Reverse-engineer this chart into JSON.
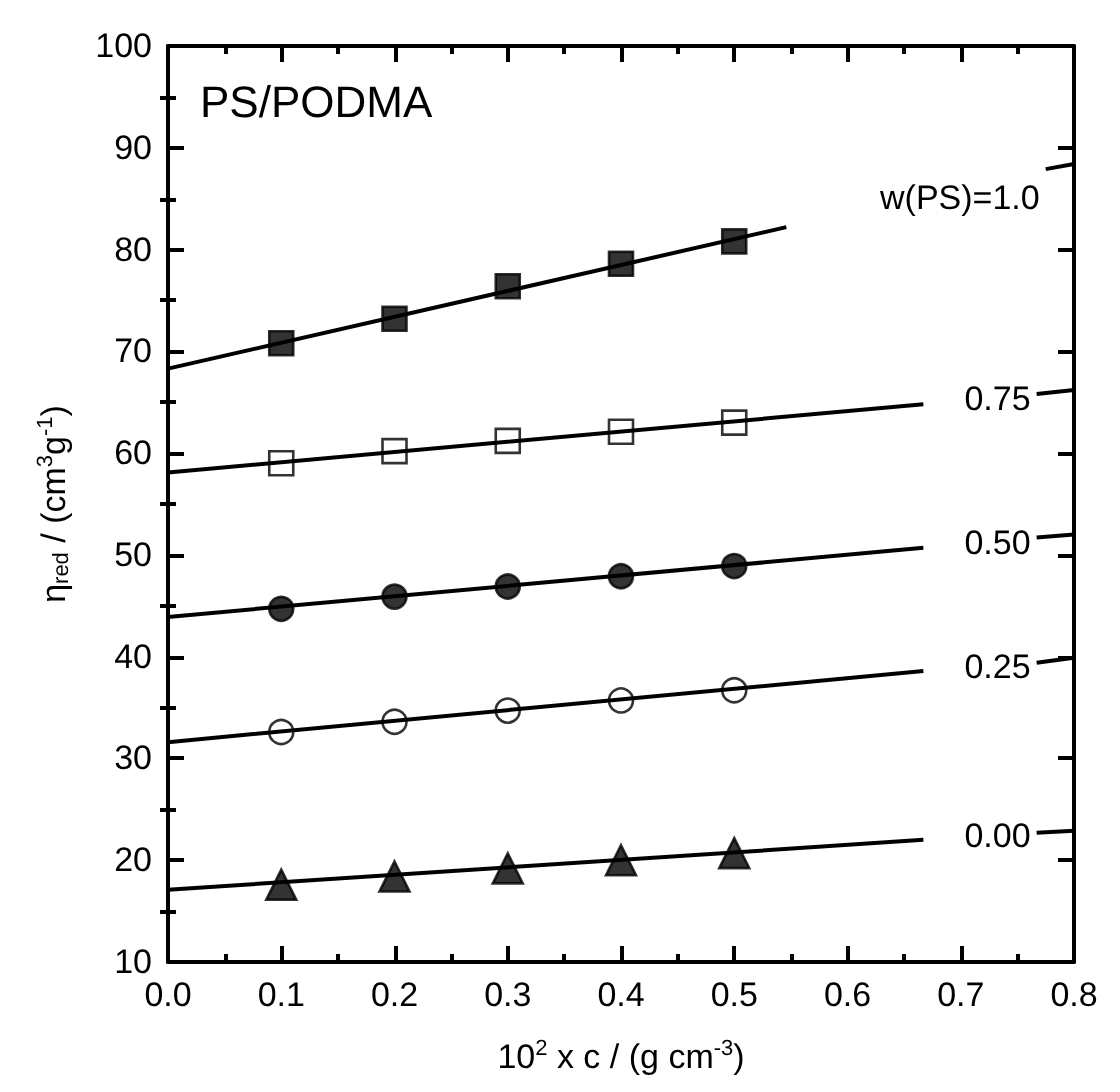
{
  "chart_data": {
    "type": "scatter",
    "xlabel": "10$^{2}$ x c / (g cm$^{-3}$)",
    "ylabel": "η$_{red}$ / (cm$^{3}$g$^{-1}$)",
    "xlim": [
      0,
      0.8
    ],
    "ylim": [
      10,
      100
    ],
    "xticks": [
      {
        "value": 0,
        "label": "0.0"
      },
      0.1,
      0.2,
      0.3,
      0.4,
      0.5,
      0.6,
      0.7,
      0.8
    ],
    "yticks": [
      10,
      20,
      30,
      40,
      50,
      60,
      70,
      80,
      90,
      100
    ],
    "grid": false,
    "series": [
      {
        "marker": "square",
        "color": "#000000",
        "x": [
          0.1,
          0.2,
          0.3,
          0.4,
          0.5
        ],
        "values": [
          70.8,
          73.2,
          76.4,
          78.6,
          80.8
        ]
      },
      {
        "marker": "square",
        "color": "#ffffff",
        "x": [
          0.1,
          0.2,
          0.3,
          0.4,
          0.5
        ],
        "values": [
          59.0,
          60.2,
          61.2,
          62.1,
          63.0
        ]
      },
      {
        "marker": "circle",
        "color": "#000000",
        "x": [
          0.1,
          0.2,
          0.3,
          0.4,
          0.5
        ],
        "values": [
          44.7,
          45.9,
          46.9,
          47.9,
          48.9
        ]
      },
      {
        "marker": "circle",
        "color": "#ffffff",
        "x": [
          0.1,
          0.2,
          0.3,
          0.4,
          0.5
        ],
        "values": [
          32.6,
          33.6,
          34.7,
          35.7,
          36.7
        ]
      },
      {
        "marker": "triangle",
        "color": "#000000",
        "x": [
          0.1,
          0.2,
          0.3,
          0.4,
          0.5
        ],
        "values": [
          17.6,
          18.4,
          19.2,
          20.0,
          20.7
        ]
      },
      {
        "type": "line",
        "color": "#000000",
        "x": [
          0,
          0.546,
          0.66,
          0.775,
          0.8
        ],
        "values": [
          68.3,
          82.2,
          null,
          87.9,
          88.4
        ]
      },
      {
        "type": "line",
        "color": "#000000",
        "x": [
          0,
          0.667,
          0.72,
          0.767,
          0.8
        ],
        "values": [
          58.1,
          64.8,
          null,
          65.8,
          66.2
        ]
      },
      {
        "type": "line",
        "color": "#000000",
        "x": [
          0,
          0.667,
          0.72,
          0.767,
          0.8
        ],
        "values": [
          43.9,
          50.7,
          null,
          51.7,
          52.0
        ]
      },
      {
        "type": "line",
        "color": "#000000",
        "x": [
          0,
          0.667,
          0.72,
          0.767,
          0.8
        ],
        "values": [
          31.6,
          38.6,
          null,
          39.4,
          39.9
        ]
      },
      {
        "type": "line",
        "color": "#000000",
        "x": [
          0,
          0.667,
          0.72,
          0.767,
          0.8
        ],
        "values": [
          17.1,
          22.0,
          null,
          22.7,
          22.9
        ]
      }
    ],
    "annotations": [
      "PS/PODMA",
      "w(PS)=1.0",
      "0.75",
      "0.50",
      "0.25",
      "0.00"
    ]
  }
}
